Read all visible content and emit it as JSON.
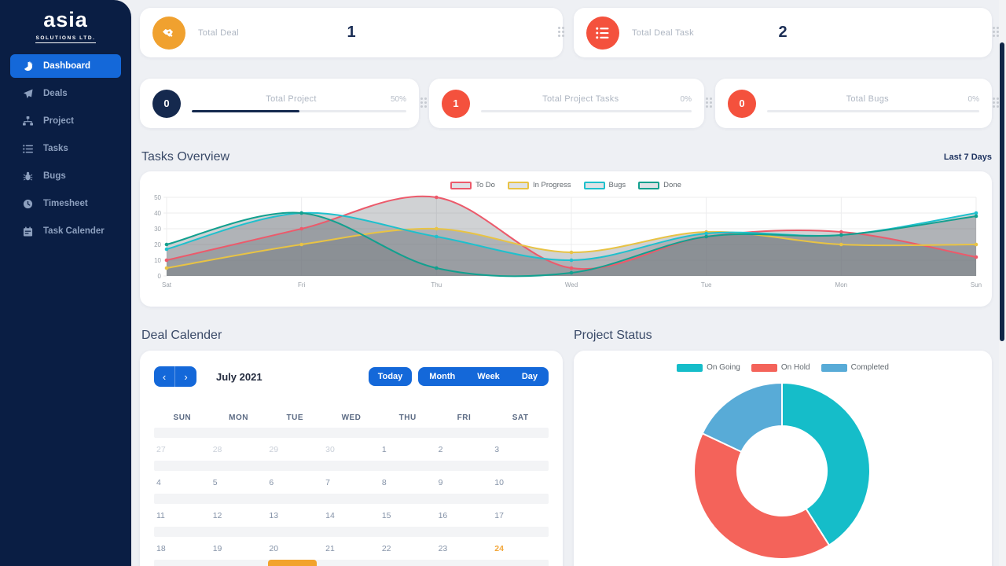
{
  "sidebar": {
    "logo": {
      "title": "asia",
      "subtitle": "SOLUTIONS LTD."
    },
    "items": [
      {
        "label": "Dashboard",
        "icon": "dashboard-icon",
        "active": true
      },
      {
        "label": "Deals",
        "icon": "send-icon",
        "active": false
      },
      {
        "label": "Project",
        "icon": "sitemap-icon",
        "active": false
      },
      {
        "label": "Tasks",
        "icon": "list-icon",
        "active": false
      },
      {
        "label": "Bugs",
        "icon": "bug-icon",
        "active": false
      },
      {
        "label": "Timesheet",
        "icon": "clock-icon",
        "active": false
      },
      {
        "label": "Task Calender",
        "icon": "calendar-icon",
        "active": false
      }
    ]
  },
  "stat_cards": {
    "total_deal": {
      "label": "Total Deal",
      "value": "1",
      "icon": "handshake-icon",
      "icon_bg": "#f0a12f"
    },
    "total_deal_task": {
      "label": "Total Deal Task",
      "value": "2",
      "icon": "task-list-icon",
      "icon_bg": "#f4513d"
    }
  },
  "progress_cards": [
    {
      "label": "Total Project",
      "count": "0",
      "percent": "50%",
      "progress": 50,
      "badge_color": "#15294e",
      "bar_color": "#15294e"
    },
    {
      "label": "Total Project Tasks",
      "count": "1",
      "percent": "0%",
      "progress": 0,
      "badge_color": "#f4513d",
      "bar_color": "#f4513d"
    },
    {
      "label": "Total Bugs",
      "count": "0",
      "percent": "0%",
      "progress": 0,
      "badge_color": "#f4513d",
      "bar_color": "#f4513d"
    }
  ],
  "tasks_overview": {
    "title": "Tasks Overview",
    "range_label": "Last 7 Days"
  },
  "deal_calendar": {
    "title": "Deal Calender",
    "month_label": "July 2021",
    "buttons": {
      "today": "Today",
      "month": "Month",
      "week": "Week",
      "day": "Day"
    },
    "day_headers": [
      "SUN",
      "MON",
      "TUE",
      "WED",
      "THU",
      "FRI",
      "SAT"
    ],
    "weeks": [
      [
        {
          "d": "27",
          "muted": true
        },
        {
          "d": "28",
          "muted": true
        },
        {
          "d": "29",
          "muted": true
        },
        {
          "d": "30",
          "muted": true
        },
        {
          "d": "1"
        },
        {
          "d": "2"
        },
        {
          "d": "3"
        }
      ],
      [
        {
          "d": "4"
        },
        {
          "d": "5"
        },
        {
          "d": "6"
        },
        {
          "d": "7"
        },
        {
          "d": "8"
        },
        {
          "d": "9"
        },
        {
          "d": "10"
        }
      ],
      [
        {
          "d": "11"
        },
        {
          "d": "12"
        },
        {
          "d": "13"
        },
        {
          "d": "14"
        },
        {
          "d": "15"
        },
        {
          "d": "16"
        },
        {
          "d": "17"
        }
      ],
      [
        {
          "d": "18"
        },
        {
          "d": "19"
        },
        {
          "d": "20"
        },
        {
          "d": "21"
        },
        {
          "d": "22"
        },
        {
          "d": "23"
        },
        {
          "d": "24",
          "today": true
        }
      ]
    ],
    "event": {
      "after_week": 4,
      "col": 2,
      "color": "#f2a32c"
    }
  },
  "project_status": {
    "title": "Project Status"
  },
  "chart_data": [
    {
      "type": "line",
      "title": "Tasks Overview",
      "x": [
        "Sat",
        "Fri",
        "Thu",
        "Wed",
        "Tue",
        "Mon",
        "Sun"
      ],
      "ylim": [
        0,
        50
      ],
      "yticks": [
        0,
        10,
        20,
        30,
        40,
        50
      ],
      "grid": true,
      "legend_position": "top",
      "fill_color": "rgba(110,115,122,0.32)",
      "series": [
        {
          "name": "To Do",
          "color": "#ec5a6b",
          "values": [
            10,
            30,
            50,
            5,
            25,
            28,
            12
          ]
        },
        {
          "name": "In Progress",
          "color": "#e8c344",
          "values": [
            5,
            20,
            30,
            15,
            28,
            20,
            20
          ]
        },
        {
          "name": "Bugs",
          "color": "#1fc0cd",
          "values": [
            17,
            40,
            25,
            10,
            27,
            26,
            40
          ]
        },
        {
          "name": "Done",
          "color": "#12a08f",
          "values": [
            20,
            40,
            5,
            2,
            25,
            26,
            38
          ]
        }
      ]
    },
    {
      "type": "donut",
      "title": "Project Status",
      "legend_position": "top",
      "labels": [
        "On Going",
        "On Hold",
        "Completed"
      ],
      "values_percent": [
        41,
        41,
        18
      ],
      "colors": [
        "#15bdc9",
        "#f4635a",
        "#58abd7"
      ]
    }
  ]
}
